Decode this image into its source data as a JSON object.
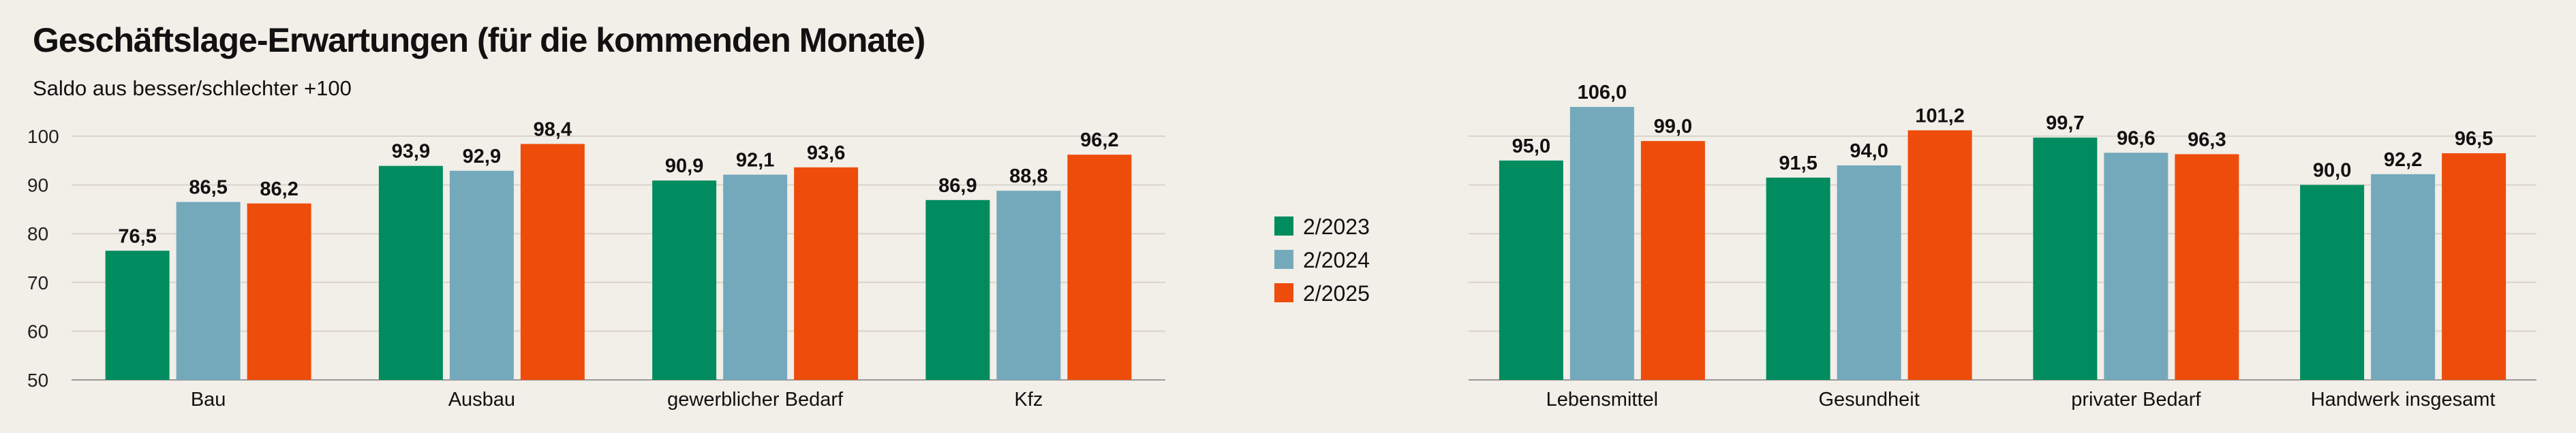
{
  "title": "Geschäftslage-Erwartungen (für die kommenden Monate)",
  "subtitle": "Saldo aus besser/schlechter +100",
  "chart_data": {
    "type": "bar",
    "title": "Geschäftslage-Erwartungen (für die kommenden Monate)",
    "ylabel": "Saldo aus besser/schlechter +100",
    "ylim": [
      50,
      110
    ],
    "yticks": [
      50,
      60,
      70,
      80,
      90,
      100
    ],
    "grid": true,
    "legend": "center",
    "panels": [
      {
        "categories": [
          "Bau",
          "Ausbau",
          "gewerblicher Bedarf",
          "Kfz"
        ]
      },
      {
        "categories": [
          "Lebensmittel",
          "Gesundheit",
          "privater Bedarf",
          "Handwerk insgesamt"
        ]
      }
    ],
    "categories": [
      "Bau",
      "Ausbau",
      "gewerblicher Bedarf",
      "Kfz",
      "Lebensmittel",
      "Gesundheit",
      "privater Bedarf",
      "Handwerk insgesamt"
    ],
    "series": [
      {
        "name": "2/2023",
        "color": "#008c5f",
        "values": [
          76.5,
          93.9,
          90.9,
          86.9,
          95.0,
          91.5,
          99.7,
          90.0
        ],
        "labels": [
          "76,5",
          "93,9",
          "90,9",
          "86,9",
          "95,0",
          "91,5",
          "99,7",
          "90,0"
        ]
      },
      {
        "name": "2/2024",
        "color": "#74a9bc",
        "values": [
          86.5,
          92.9,
          92.1,
          88.8,
          106.0,
          94.0,
          96.6,
          92.2
        ],
        "labels": [
          "86,5",
          "92,9",
          "92,1",
          "88,8",
          "106,0",
          "94,0",
          "96,6",
          "92,2"
        ]
      },
      {
        "name": "2/2025",
        "color": "#ee4c0a",
        "values": [
          86.2,
          98.4,
          93.6,
          96.2,
          99.0,
          101.2,
          96.3,
          96.5
        ],
        "labels": [
          "86,2",
          "98,4",
          "93,6",
          "96,2",
          "99,0",
          "101,2",
          "96,3",
          "96,5"
        ]
      }
    ]
  }
}
